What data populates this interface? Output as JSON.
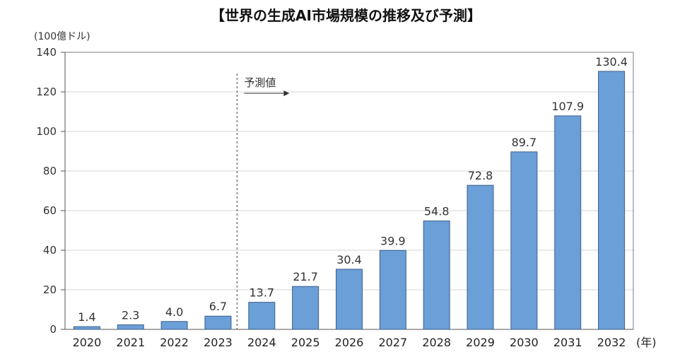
{
  "chart_data": {
    "type": "bar",
    "title": "【世界の生成AI市場規模の推移及び予測】",
    "ylabel": "(100億ドル)",
    "xlabel": "(年)",
    "categories": [
      "2020",
      "2021",
      "2022",
      "2023",
      "2024",
      "2025",
      "2026",
      "2027",
      "2028",
      "2029",
      "2030",
      "2031",
      "2032"
    ],
    "values": [
      1.4,
      2.3,
      4.0,
      6.7,
      13.7,
      21.7,
      30.4,
      39.9,
      54.8,
      72.8,
      89.7,
      107.9,
      130.4
    ],
    "value_labels": [
      "1.4",
      "2.3",
      "4.0",
      "6.7",
      "13.7",
      "21.7",
      "30.4",
      "39.9",
      "54.8",
      "72.8",
      "89.7",
      "107.9",
      "130.4"
    ],
    "ylim": [
      0,
      140
    ],
    "yticks": [
      0,
      20,
      40,
      60,
      80,
      100,
      120,
      140
    ],
    "grid": true,
    "bar_color": "#6a9fd8",
    "forecast_annotation": {
      "label": "予測値",
      "start_category": "2024"
    }
  }
}
